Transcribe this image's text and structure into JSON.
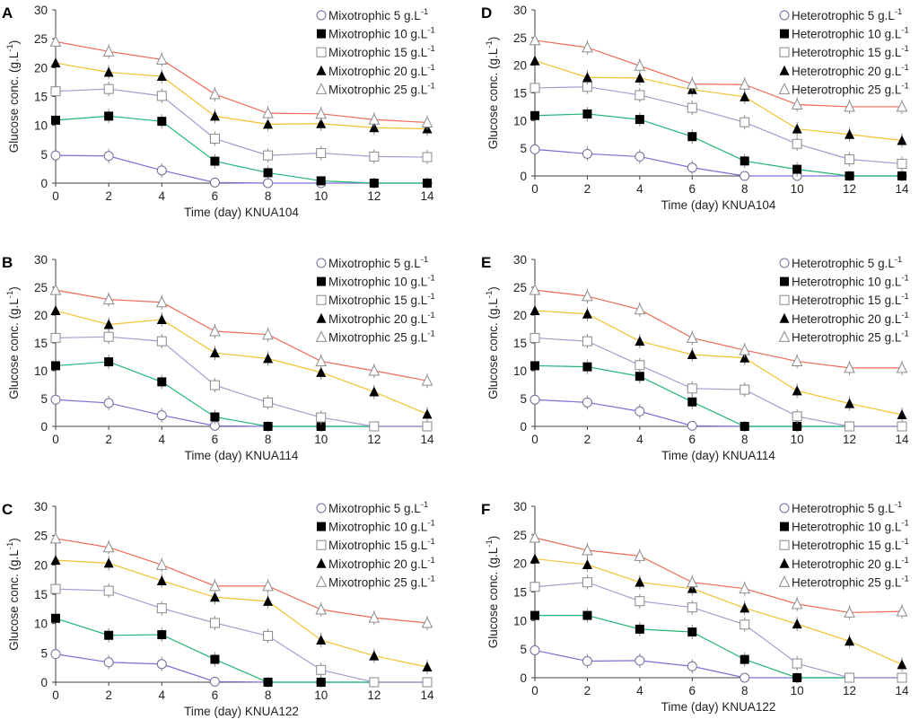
{
  "figure": {
    "colors": {
      "axis": "#404040",
      "grid": "#bfbfbf",
      "series": [
        "#7b6fd6",
        "#22b573",
        "#a79bcf",
        "#f2c230",
        "#ef6a57"
      ],
      "marker_stroke": [
        "#6f6f9a",
        "#000000",
        "#8a8a8a",
        "#000000",
        "#8c8c8c"
      ],
      "error_bar": "#8c8c8c"
    },
    "legend_unit": "g.L",
    "legend_unit_exp": "-1"
  },
  "chart_data": [
    {
      "id": "A",
      "panel_label": "A",
      "type": "line",
      "xlabel": "Time (day) KNUA104",
      "ylabel": "Glucose conc. (g.L",
      "ylabel_exp": "-1",
      "ylabel_close": ")",
      "x": [
        0,
        2,
        4,
        6,
        8,
        10,
        12,
        14
      ],
      "xticks": [
        "0",
        "2",
        "4",
        "6",
        "8",
        "10",
        "12",
        "14"
      ],
      "yticks": [
        "0",
        "5",
        "10",
        "15",
        "20",
        "25",
        "30"
      ],
      "ylim": [
        0,
        30
      ],
      "series": [
        {
          "name": "Mixotrophic 5",
          "marker": "circle-open",
          "values": [
            4.8,
            4.7,
            2.2,
            0.1,
            0,
            0,
            0,
            0
          ]
        },
        {
          "name": "Mixotrophic 10",
          "marker": "square-filled",
          "values": [
            10.9,
            11.6,
            10.7,
            3.8,
            1.8,
            0.4,
            0,
            0
          ]
        },
        {
          "name": "Mixotrophic 15",
          "marker": "square-open",
          "values": [
            15.9,
            16.3,
            15.1,
            7.7,
            4.8,
            5.2,
            4.6,
            4.5
          ]
        },
        {
          "name": "Mixotrophic 20",
          "marker": "triangle-filled",
          "values": [
            20.8,
            19.2,
            18.5,
            11.6,
            10.2,
            10.3,
            9.6,
            9.4
          ]
        },
        {
          "name": "Mixotrophic 25",
          "marker": "triangle-open",
          "values": [
            24.5,
            22.8,
            21.4,
            15.4,
            12.1,
            12.0,
            11.0,
            10.5
          ]
        }
      ]
    },
    {
      "id": "B",
      "panel_label": "B",
      "type": "line",
      "xlabel": "Time (day) KNUA114",
      "ylabel": "Glucose conc. (g.L",
      "ylabel_exp": "-1",
      "ylabel_close": ")",
      "x": [
        0,
        2,
        4,
        6,
        8,
        10,
        12,
        14
      ],
      "xticks": [
        "0",
        "2",
        "4",
        "6",
        "8",
        "10",
        "12",
        "14"
      ],
      "yticks": [
        "0",
        "5",
        "10",
        "15",
        "20",
        "25",
        "30"
      ],
      "ylim": [
        0,
        30
      ],
      "series": [
        {
          "name": "Mixotrophic 5",
          "marker": "circle-open",
          "values": [
            4.8,
            4.2,
            2.0,
            0.1,
            0,
            0,
            0,
            0
          ]
        },
        {
          "name": "Mixotrophic 10",
          "marker": "square-filled",
          "values": [
            10.9,
            11.6,
            8.0,
            1.7,
            0,
            0,
            0,
            0
          ]
        },
        {
          "name": "Mixotrophic 15",
          "marker": "square-open",
          "values": [
            15.9,
            16.1,
            15.3,
            7.4,
            4.3,
            1.6,
            0,
            0
          ]
        },
        {
          "name": "Mixotrophic 20",
          "marker": "triangle-filled",
          "values": [
            20.8,
            18.3,
            19.2,
            13.2,
            12.2,
            9.7,
            6.2,
            2.2
          ]
        },
        {
          "name": "Mixotrophic 25",
          "marker": "triangle-open",
          "values": [
            24.5,
            22.8,
            22.3,
            17.1,
            16.5,
            11.7,
            10.0,
            8.2
          ]
        }
      ]
    },
    {
      "id": "C",
      "panel_label": "C",
      "type": "line",
      "xlabel": "Time (day) KNUA122",
      "ylabel": "Glucose conc. (g.L",
      "ylabel_exp": "-1",
      "ylabel_close": ")",
      "x": [
        0,
        2,
        4,
        6,
        8,
        10,
        12,
        14
      ],
      "xticks": [
        "0",
        "2",
        "4",
        "6",
        "8",
        "10",
        "12",
        "14"
      ],
      "yticks": [
        "0",
        "5",
        "10",
        "15",
        "20",
        "25",
        "30"
      ],
      "ylim": [
        0,
        30
      ],
      "series": [
        {
          "name": "Mixotrophic 5",
          "marker": "circle-open",
          "values": [
            4.8,
            3.4,
            3.1,
            0.1,
            0,
            0,
            0,
            0
          ]
        },
        {
          "name": "Mixotrophic 10",
          "marker": "square-filled",
          "values": [
            10.9,
            8.0,
            8.1,
            3.9,
            0,
            0,
            0,
            0
          ]
        },
        {
          "name": "Mixotrophic 15",
          "marker": "square-open",
          "values": [
            15.9,
            15.6,
            12.6,
            10.1,
            7.9,
            2.1,
            0,
            0
          ]
        },
        {
          "name": "Mixotrophic 20",
          "marker": "triangle-filled",
          "values": [
            20.8,
            20.3,
            17.3,
            14.5,
            13.8,
            7.2,
            4.5,
            2.6
          ]
        },
        {
          "name": "Mixotrophic 25",
          "marker": "triangle-open",
          "values": [
            24.5,
            23.0,
            20.0,
            16.4,
            16.4,
            12.4,
            11.0,
            10.1
          ]
        }
      ]
    },
    {
      "id": "D",
      "panel_label": "D",
      "type": "line",
      "xlabel": "Time (day) KNUA104",
      "ylabel": "Glucose conc. (g.L",
      "ylabel_exp": "-1",
      "ylabel_close": ")",
      "x": [
        0,
        2,
        4,
        6,
        8,
        10,
        12,
        14
      ],
      "xticks": [
        "0",
        "2",
        "4",
        "6",
        "8",
        "10",
        "12",
        "14"
      ],
      "yticks": [
        "0",
        "5",
        "10",
        "15",
        "20",
        "25",
        "30"
      ],
      "ylim": [
        0,
        30
      ],
      "series": [
        {
          "name": "Heterotrophic 5",
          "marker": "circle-open",
          "values": [
            4.8,
            4.0,
            3.5,
            1.5,
            0,
            0,
            0,
            0
          ]
        },
        {
          "name": "Heterotrophic 10",
          "marker": "square-filled",
          "values": [
            10.9,
            11.2,
            10.2,
            7.1,
            2.7,
            1.2,
            0,
            0
          ]
        },
        {
          "name": "Heterotrophic 15",
          "marker": "square-open",
          "values": [
            15.9,
            16.1,
            14.6,
            12.3,
            9.7,
            5.8,
            3.0,
            2.2
          ]
        },
        {
          "name": "Heterotrophic 20",
          "marker": "triangle-filled",
          "values": [
            20.8,
            17.8,
            17.7,
            15.6,
            14.3,
            8.5,
            7.5,
            6.4
          ]
        },
        {
          "name": "Heterotrophic 25",
          "marker": "triangle-open",
          "values": [
            24.5,
            23.2,
            19.9,
            16.6,
            16.5,
            12.9,
            12.5,
            12.5
          ]
        }
      ]
    },
    {
      "id": "E",
      "panel_label": "E",
      "type": "line",
      "xlabel": "Time (day) KNUA114",
      "ylabel": "Glucose conc. (g.L",
      "ylabel_exp": "-1",
      "ylabel_close": ")",
      "x": [
        0,
        2,
        4,
        6,
        8,
        10,
        12,
        14
      ],
      "xticks": [
        "0",
        "2",
        "4",
        "6",
        "8",
        "10",
        "12",
        "14"
      ],
      "yticks": [
        "0",
        "5",
        "10",
        "15",
        "20",
        "25",
        "30"
      ],
      "ylim": [
        0,
        30
      ],
      "series": [
        {
          "name": "Heterotrophic 5",
          "marker": "circle-open",
          "values": [
            4.8,
            4.3,
            2.7,
            0.1,
            0,
            0,
            0,
            0
          ]
        },
        {
          "name": "Heterotrophic 10",
          "marker": "square-filled",
          "values": [
            10.9,
            10.7,
            9.0,
            4.4,
            0,
            0,
            0,
            0
          ]
        },
        {
          "name": "Heterotrophic 15",
          "marker": "square-open",
          "values": [
            15.9,
            15.3,
            11.0,
            6.8,
            6.6,
            1.8,
            0,
            0
          ]
        },
        {
          "name": "Heterotrophic 20",
          "marker": "triangle-filled",
          "values": [
            20.8,
            20.2,
            15.3,
            12.9,
            12.3,
            6.4,
            4.1,
            2.1
          ]
        },
        {
          "name": "Heterotrophic 25",
          "marker": "triangle-open",
          "values": [
            24.5,
            23.4,
            21.0,
            15.9,
            13.7,
            11.7,
            10.5,
            10.5
          ]
        }
      ]
    },
    {
      "id": "F",
      "panel_label": "F",
      "type": "line",
      "xlabel": "Time (day) KNUA122",
      "ylabel": "Glucose conc. (g.L",
      "ylabel_exp": "-1",
      "ylabel_close": ")",
      "x": [
        0,
        2,
        4,
        6,
        8,
        10,
        12,
        14
      ],
      "xticks": [
        "0",
        "2",
        "4",
        "6",
        "8",
        "10",
        "12",
        "14"
      ],
      "yticks": [
        "0",
        "5",
        "10",
        "15",
        "20",
        "25",
        "30"
      ],
      "ylim": [
        0,
        30
      ],
      "series": [
        {
          "name": "Heterotrophic 5",
          "marker": "circle-open",
          "values": [
            4.8,
            2.9,
            3.0,
            2.0,
            0,
            0,
            0,
            0
          ]
        },
        {
          "name": "Heterotrophic 10",
          "marker": "square-filled",
          "values": [
            10.9,
            10.9,
            8.5,
            8.0,
            3.2,
            0,
            0,
            0
          ]
        },
        {
          "name": "Heterotrophic 15",
          "marker": "square-open",
          "values": [
            15.9,
            16.7,
            13.4,
            12.3,
            9.3,
            2.5,
            0,
            0
          ]
        },
        {
          "name": "Heterotrophic 20",
          "marker": "triangle-filled",
          "values": [
            20.8,
            19.8,
            16.7,
            15.6,
            12.2,
            9.4,
            6.4,
            2.3
          ]
        },
        {
          "name": "Heterotrophic 25",
          "marker": "triangle-open",
          "values": [
            24.5,
            22.3,
            21.3,
            16.7,
            15.6,
            12.9,
            11.4,
            11.6
          ]
        }
      ]
    }
  ]
}
